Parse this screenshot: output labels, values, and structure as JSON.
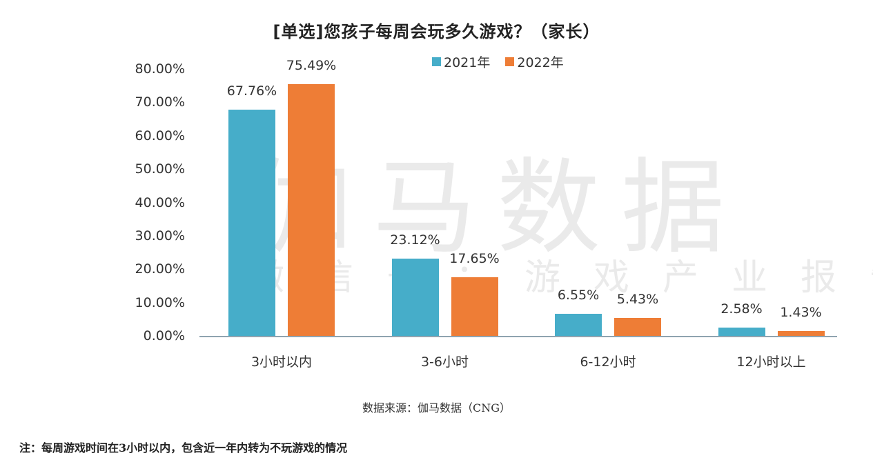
{
  "chart_data": {
    "type": "bar",
    "title": "[单选]您孩子每周会玩多久游戏？（家长）",
    "categories": [
      "3小时以内",
      "3-6小时",
      "6-12小时",
      "12小时以上"
    ],
    "series": [
      {
        "name": "2021年",
        "color": "#46adc9",
        "values": [
          67.76,
          23.12,
          6.55,
          2.58
        ],
        "labels": [
          "67.76%",
          "23.12%",
          "6.55%",
          "2.58%"
        ]
      },
      {
        "name": "2022年",
        "color": "#ee7d36",
        "values": [
          75.49,
          17.65,
          5.43,
          1.43
        ],
        "labels": [
          "75.49%",
          "17.65%",
          "5.43%",
          "1.43%"
        ]
      }
    ],
    "xlabel": "",
    "ylabel": "",
    "ylim": [
      0,
      80
    ],
    "yticks": [
      "0.00%",
      "10.00%",
      "20.00%",
      "30.00%",
      "40.00%",
      "50.00%",
      "60.00%",
      "70.00%",
      "80.00%"
    ],
    "grid": false,
    "legend_position": "top"
  },
  "watermark": {
    "main": "伽马数据",
    "sub": "微信号：游戏产业报告"
  },
  "source": "数据来源：伽马数据（CNG）",
  "note": "注：每周游戏时间在3小时以内，包含近一年内转为不玩游戏的情况"
}
